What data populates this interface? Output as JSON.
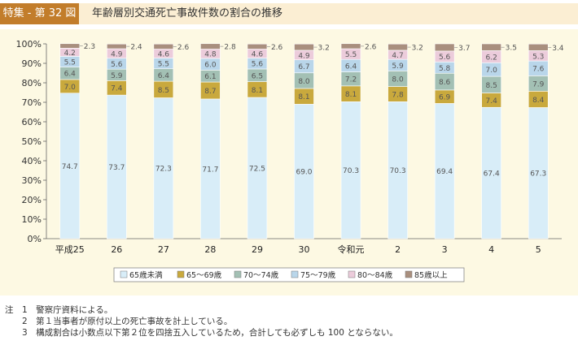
{
  "header": {
    "tag": "特集 - 第 32 図",
    "title": "年齢層別交通死亡事故件数の割合の推移"
  },
  "chart_data": {
    "type": "bar",
    "stacked": true,
    "categories": [
      "平成25",
      "26",
      "27",
      "28",
      "29",
      "30",
      "令和元",
      "2",
      "3",
      "4",
      "5"
    ],
    "yticks": [
      "0%",
      "10%",
      "20%",
      "30%",
      "40%",
      "50%",
      "60%",
      "70%",
      "80%",
      "90%",
      "100%"
    ],
    "ylim": [
      0,
      100
    ],
    "legend_position": "bottom",
    "series": [
      {
        "name": "65歳未満",
        "color": "#d8edf8",
        "values": [
          74.7,
          73.7,
          72.3,
          71.7,
          72.5,
          69.0,
          70.3,
          70.3,
          69.4,
          67.4,
          67.3
        ]
      },
      {
        "name": "65～69歳",
        "color": "#c9a93d",
        "values": [
          7.0,
          7.4,
          8.5,
          8.7,
          8.1,
          8.1,
          8.1,
          7.8,
          6.9,
          7.4,
          8.4
        ]
      },
      {
        "name": "70～74歳",
        "color": "#a3c0b4",
        "values": [
          6.4,
          5.9,
          6.4,
          6.1,
          6.5,
          8.0,
          7.2,
          8.0,
          8.6,
          8.5,
          7.9
        ]
      },
      {
        "name": "75～79歳",
        "color": "#b9d6ea",
        "values": [
          5.5,
          5.6,
          5.5,
          6.0,
          5.6,
          6.7,
          6.4,
          5.9,
          5.8,
          7.0,
          7.6
        ]
      },
      {
        "name": "80～84歳",
        "color": "#ecccdb",
        "values": [
          4.2,
          4.9,
          4.6,
          4.8,
          4.6,
          4.9,
          5.5,
          4.7,
          5.6,
          6.2,
          5.3
        ]
      },
      {
        "name": "85歳以上",
        "color": "#a98f7e",
        "values": [
          2.3,
          2.4,
          2.6,
          2.8,
          2.6,
          3.2,
          2.6,
          3.2,
          3.7,
          3.5,
          3.4
        ]
      }
    ]
  },
  "notes": [
    "注　1　警察庁資料による。",
    "　　2　第１当事者が原付以上の死亡事故を計上している。",
    "　　3　構成割合は小数点以下第２位を四捨五入しているため，合計しても必ずしも 100 とならない。"
  ]
}
